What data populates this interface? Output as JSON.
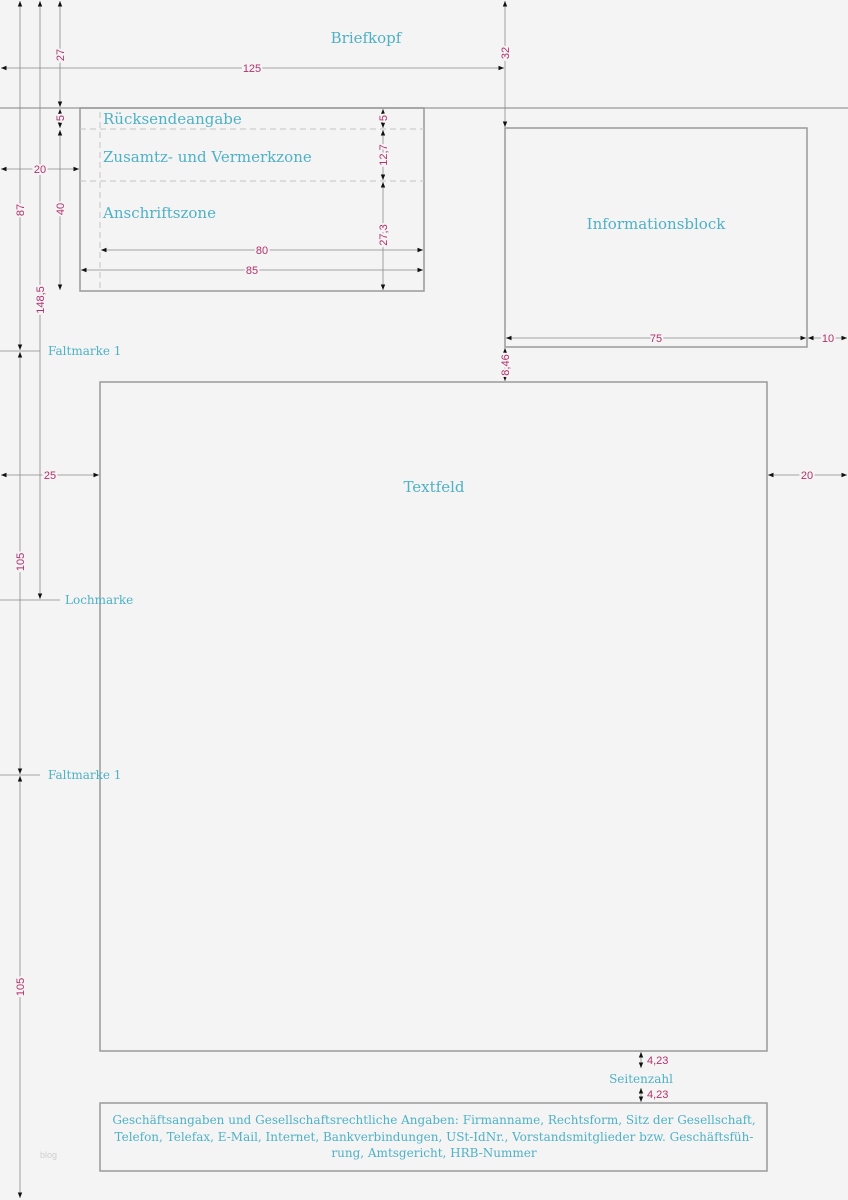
{
  "zones": {
    "briefkopf": "Briefkopf",
    "ruecksendeangabe": "Rücksendeangabe",
    "vermerkzone": "Zusamtz- und Vermerkzone",
    "anschriftszone": "Anschriftszone",
    "informationsblock": "Informationsblock",
    "textfeld": "Textfeld",
    "seitenzahl": "Seitenzahl",
    "footer_lines": [
      "Geschäftsangaben und Gesellschaftsrechtliche Angaben: Firmanname, Rechtsform, Sitz der Gesellschaft,",
      "Telefon, Telefax, E-Mail, Internet, Bankverbindungen, USt-IdNr., Vorstandsmitglieder bzw. Geschäftsfüh-",
      "rung, Amtsgericht, HRB-Nummer"
    ]
  },
  "marks": {
    "faltmarke_top": "Faltmarke 1",
    "lochmarke": "Lochmarke",
    "faltmarke_bottom": "Faltmarke 1"
  },
  "dimensions": {
    "top_27": "27",
    "width_125": "125",
    "top_32": "32",
    "ruecksende_5_left": "5",
    "ruecksende_5_right": "5",
    "left_20": "20",
    "height_40": "40",
    "vermerk_12_7": "12,7",
    "anschrift_27_3": "27,3",
    "width_80": "80",
    "width_85": "85",
    "faltmarke_87": "87",
    "lochmarke_148_5": "148,5",
    "info_75": "75",
    "right_10": "10",
    "gap_8_46": "8,46",
    "left_25": "25",
    "right_20": "20",
    "fold_105_a": "105",
    "fold_105_b": "105",
    "page_gap_top": "4,23",
    "page_gap_bottom": "4,23"
  },
  "watermark": "blog",
  "colors": {
    "label": "#4fb1c6",
    "dimension": "#b3316c",
    "line": "#9a9a9a",
    "background": "#f4f4f4"
  }
}
